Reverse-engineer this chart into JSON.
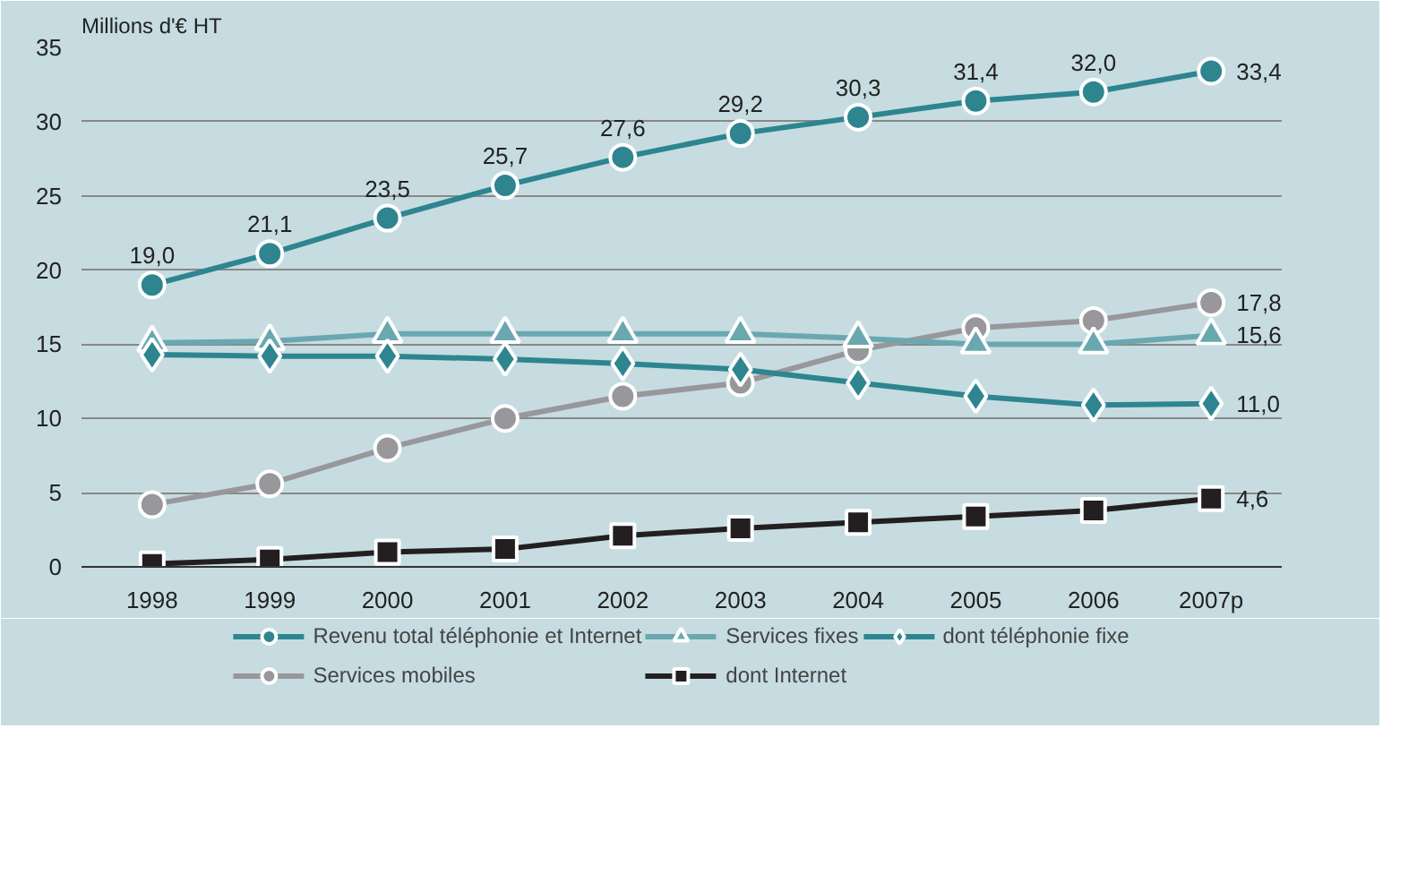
{
  "chart_data": {
    "type": "line",
    "ylabel": "Millions d'€ HT",
    "categories": [
      "1998",
      "1999",
      "2000",
      "2001",
      "2002",
      "2003",
      "2004",
      "2005",
      "2006",
      "2007p"
    ],
    "ylim": [
      0,
      35
    ],
    "yticks": [
      0,
      5,
      10,
      15,
      20,
      25,
      30,
      35
    ],
    "grid": "y",
    "legend": "bottom",
    "line_style": "solid",
    "series": [
      {
        "name": "Revenu total téléphonie et Internet",
        "color": "#2e8590",
        "marker": "circle",
        "values": [
          19.0,
          21.1,
          23.5,
          25.7,
          27.6,
          29.2,
          30.3,
          31.4,
          32.0,
          33.4
        ],
        "value_labels": [
          "19,0",
          "21,1",
          "23,5",
          "25,7",
          "27,6",
          "29,2",
          "30,3",
          "31,4",
          "32,0",
          "33,4"
        ]
      },
      {
        "name": "Services mobiles",
        "color": "#98989c",
        "marker": "circle",
        "values": [
          4.2,
          5.6,
          8.0,
          10.0,
          11.5,
          12.4,
          14.6,
          16.1,
          16.6,
          17.8
        ],
        "value_labels": [
          null,
          null,
          null,
          null,
          null,
          null,
          null,
          null,
          null,
          "17,8"
        ]
      },
      {
        "name": "Services fixes",
        "color": "#6aa8b0",
        "marker": "triangle",
        "values": [
          15.1,
          15.2,
          15.7,
          15.7,
          15.7,
          15.7,
          15.4,
          15.0,
          15.0,
          15.6
        ],
        "value_labels": [
          null,
          null,
          null,
          null,
          null,
          null,
          null,
          null,
          null,
          "15,6"
        ]
      },
      {
        "name": "dont Internet",
        "color": "#231f20",
        "marker": "square",
        "values": [
          0.2,
          0.5,
          1.0,
          1.2,
          2.1,
          2.6,
          3.0,
          3.4,
          3.8,
          4.6
        ],
        "value_labels": [
          null,
          null,
          null,
          null,
          null,
          null,
          null,
          null,
          null,
          "4,6"
        ]
      },
      {
        "name": "dont téléphonie fixe",
        "color": "#2e8590",
        "marker": "diamond",
        "values": [
          14.3,
          14.2,
          14.2,
          14.0,
          13.7,
          13.3,
          12.4,
          11.5,
          10.9,
          11.0
        ],
        "value_labels": [
          null,
          null,
          null,
          null,
          null,
          null,
          null,
          null,
          null,
          "11,0"
        ]
      }
    ]
  }
}
